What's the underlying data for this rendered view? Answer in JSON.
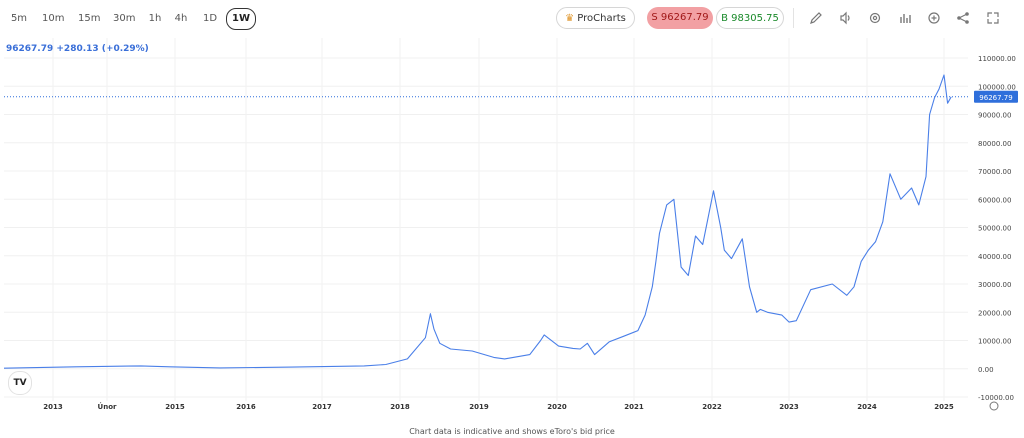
{
  "timeframes": [
    {
      "label": "5m",
      "active": false
    },
    {
      "label": "10m",
      "active": false
    },
    {
      "label": "15m",
      "active": false
    },
    {
      "label": "30m",
      "active": false
    },
    {
      "label": "1h",
      "active": false
    },
    {
      "label": "4h",
      "active": false
    },
    {
      "label": "1D",
      "active": false
    },
    {
      "label": "1W",
      "active": true
    }
  ],
  "procharts": {
    "label": "ProCharts",
    "icon": "crown-icon"
  },
  "sell": {
    "label": "S 96267.79"
  },
  "buy": {
    "label": "B 98305.75"
  },
  "tools": [
    "pencil-icon",
    "sound-icon",
    "gear-icon",
    "bar-chart-icon",
    "plus-circle-icon",
    "share-icon",
    "expand-icon"
  ],
  "quote": {
    "text": "96267.79 +280.13 (+0.29%)"
  },
  "footer": {
    "text": "Chart data is indicative and shows eToro's bid price"
  },
  "colors": {
    "line": "#4a7fe8",
    "price_tag": "#2f6fdb",
    "sell_bg": "#f2a0a3",
    "buy_text": "#1a8a2a"
  },
  "chart_data": {
    "type": "line",
    "title": "",
    "xlabel": "",
    "ylabel": "",
    "ylim": [
      -10000,
      110000
    ],
    "y_ticks": [
      "110000.00",
      "100000.00",
      "90000.00",
      "80000.00",
      "70000.00",
      "60000.00",
      "50000.00",
      "40000.00",
      "30000.00",
      "20000.00",
      "10000.00",
      "0.00",
      "-10000.00"
    ],
    "x_ticks": [
      "2013",
      "Únor",
      "2015",
      "2016",
      "2017",
      "2018",
      "2019",
      "2020",
      "2021",
      "2022",
      "2023",
      "2024",
      "2025"
    ],
    "current_price": 96267.79,
    "current_price_label": "96267.79",
    "grid": true,
    "series": [
      {
        "x": [
          2012.0,
          2013.0,
          2013.9,
          2014.3,
          2015.0,
          2016.0,
          2017.0,
          2017.3,
          2017.6,
          2017.85,
          2017.92,
          2017.97,
          2018.05,
          2018.2,
          2018.5,
          2018.8,
          2018.95,
          2019.0,
          2019.3,
          2019.45,
          2019.5,
          2019.7,
          2019.9,
          2020.0,
          2020.1,
          2020.2,
          2020.4,
          2020.6,
          2020.8,
          2020.9,
          2021.0,
          2021.05,
          2021.1,
          2021.2,
          2021.3,
          2021.4,
          2021.5,
          2021.6,
          2021.7,
          2021.85,
          2021.95,
          2022.0,
          2022.1,
          2022.25,
          2022.35,
          2022.45,
          2022.5,
          2022.6,
          2022.8,
          2022.9,
          2023.0,
          2023.2,
          2023.5,
          2023.7,
          2023.8,
          2023.9,
          2024.0,
          2024.1,
          2024.2,
          2024.3,
          2024.45,
          2024.6,
          2024.7,
          2024.8,
          2024.85,
          2024.92,
          2024.98,
          2025.05,
          2025.1,
          2025.15
        ],
        "y": [
          200,
          700,
          1000,
          700,
          300,
          600,
          1000,
          1500,
          3500,
          11000,
          19500,
          14000,
          9000,
          7000,
          6300,
          4000,
          3500,
          3700,
          5000,
          10000,
          12000,
          8000,
          7200,
          7000,
          9000,
          5000,
          9500,
          11500,
          13500,
          19000,
          29000,
          38000,
          48000,
          58000,
          60000,
          36000,
          33000,
          47000,
          44000,
          63000,
          50000,
          42000,
          39000,
          46000,
          29000,
          20000,
          21000,
          20000,
          19000,
          16500,
          17000,
          28000,
          30000,
          26000,
          29000,
          38000,
          42000,
          45000,
          52000,
          69000,
          60000,
          64000,
          58000,
          68000,
          90000,
          96000,
          99000,
          104000,
          94000,
          96267.79
        ]
      }
    ]
  }
}
